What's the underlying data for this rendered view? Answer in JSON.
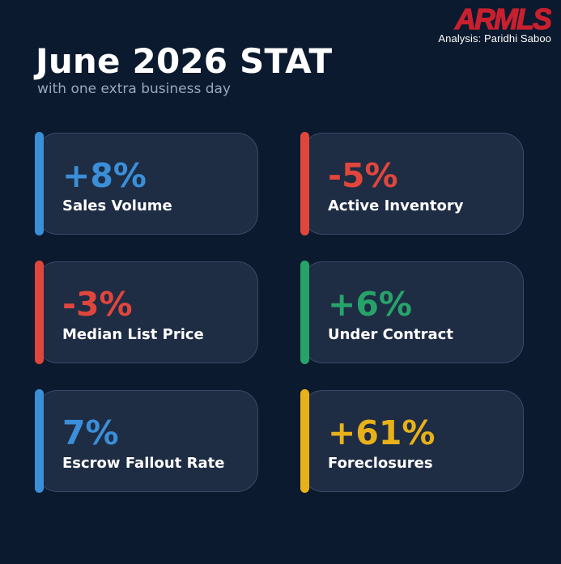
{
  "header": {
    "logo_text": "ARMLS",
    "analysis": "Analysis: Paridhi Saboo",
    "title": "June 2026 STAT",
    "subtitle": "with one extra business day"
  },
  "colors": {
    "background": "#0b1a2e",
    "card": "#1e2c44",
    "blue": "#3a8fd8",
    "red": "#e0463c",
    "green": "#27a36a",
    "yellow": "#e8b11a",
    "logo_red": "#c8202f"
  },
  "stats": [
    {
      "value": "+8%",
      "label": "Sales Volume",
      "color": "#3a8fd8"
    },
    {
      "value": "-5%",
      "label": "Active Inventory",
      "color": "#e0463c"
    },
    {
      "value": "-3%",
      "label": "Median List Price",
      "color": "#e0463c"
    },
    {
      "value": "+6%",
      "label": "Under Contract",
      "color": "#27a36a"
    },
    {
      "value": "7%",
      "label": "Escrow Fallout Rate",
      "color": "#3a8fd8"
    },
    {
      "value": "+61%",
      "label": "Foreclosures",
      "color": "#e8b11a"
    }
  ]
}
